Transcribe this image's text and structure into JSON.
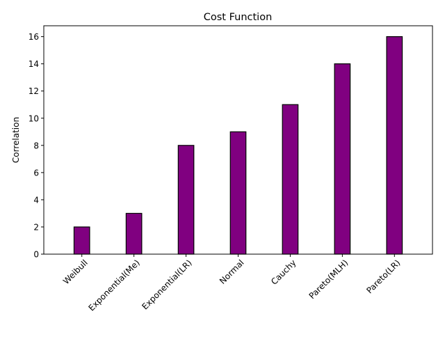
{
  "chart_data": {
    "type": "bar",
    "title": "Cost Function",
    "xlabel": "",
    "ylabel": "Correlation",
    "categories": [
      "Weibull",
      "Exponential(Me)",
      "Exponential(LR)",
      "Normal",
      "Cauchy",
      "Pareto(MLH)",
      "Pareto(LR)"
    ],
    "values": [
      2,
      3,
      8,
      9,
      11,
      14,
      16
    ],
    "ylim": [
      0,
      16.8
    ],
    "yticks": [
      0,
      2,
      4,
      6,
      8,
      10,
      12,
      14,
      16
    ],
    "bar_color": "#800080",
    "edge_color": "#000000",
    "grid": false,
    "xtick_rotation": 45
  }
}
